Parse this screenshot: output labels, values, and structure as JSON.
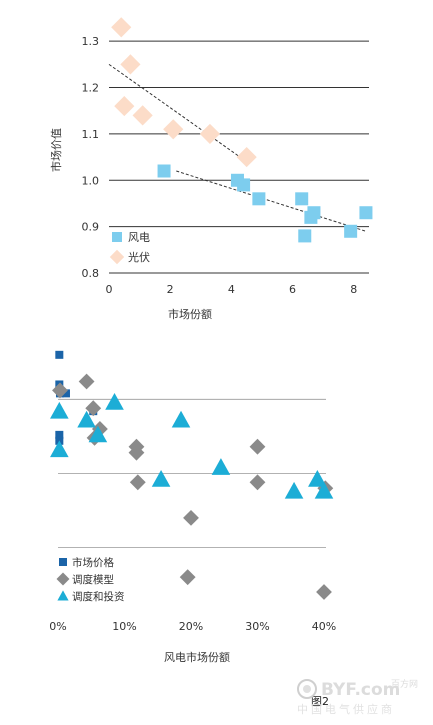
{
  "figure_label": "图2",
  "watermark": {
    "brand": "BYF.com",
    "brand_cn": "百方网",
    "tagline": "中国电气供应商"
  },
  "colors": {
    "wind": "#7dcdee",
    "solar": "#fcdcc8",
    "price": "#1b64a8",
    "dispatch": "#8a8a8a",
    "invest": "#1cadd6",
    "grid": "#333333",
    "trend": "#333333"
  },
  "chart_data": [
    {
      "type": "scatter",
      "title": "",
      "xlabel": "市场份额",
      "ylabel": "市场价值",
      "xlim": [
        0,
        8.5
      ],
      "ylim": [
        0.8,
        1.35
      ],
      "xticks": [
        0,
        2,
        4,
        6,
        8
      ],
      "yticks": [
        0.8,
        0.9,
        1.0,
        1.1,
        1.2,
        1.3
      ],
      "xtick_labels": [
        "0",
        "2",
        "4",
        "6",
        "8"
      ],
      "ytick_labels": [
        "0.8",
        "0.9",
        "1.0",
        "1.1",
        "1.2",
        "1.3"
      ],
      "grid": "horizontal",
      "legend_position": "bottom-left",
      "series": [
        {
          "name": "风电",
          "marker": "square",
          "color": "#7dcdee",
          "x": [
            1.8,
            4.2,
            4.4,
            4.9,
            6.3,
            6.4,
            6.6,
            6.7,
            7.9,
            8.4
          ],
          "y": [
            1.02,
            1.0,
            0.99,
            0.96,
            0.96,
            0.88,
            0.92,
            0.93,
            0.89,
            0.93
          ],
          "trend": [
            [
              2.2,
              1.02
            ],
            [
              8.4,
              0.89
            ]
          ]
        },
        {
          "name": "光伏",
          "marker": "diamond",
          "color": "#fcdcc8",
          "x": [
            0.4,
            0.5,
            0.7,
            1.1,
            2.1,
            3.3,
            4.5
          ],
          "y": [
            1.33,
            1.16,
            1.25,
            1.14,
            1.11,
            1.1,
            1.05
          ],
          "trend": [
            [
              0.0,
              1.25
            ],
            [
              4.5,
              1.04
            ]
          ]
        }
      ]
    },
    {
      "type": "scatter",
      "title": "",
      "xlabel": "风电市场份额",
      "ylabel": "",
      "xlim": [
        0,
        40
      ],
      "xticks": [
        0,
        10,
        20,
        30,
        40
      ],
      "xtick_labels": [
        "0%",
        "10%",
        "20%",
        "30%",
        "40%"
      ],
      "ylim": [
        0.35,
        1.2
      ],
      "ytick_labels": [],
      "grid": "horizontal",
      "gridlines_y": [
        1.0,
        0.75,
        0.5
      ],
      "legend_position": "bottom-left",
      "series": [
        {
          "name": "市场价格",
          "marker": "square",
          "color": "#1b64a8",
          "x": [
            0.2,
            0.2,
            0.3,
            0.2,
            0.2,
            1.2,
            5.3
          ],
          "y": [
            1.15,
            1.05,
            1.02,
            0.88,
            0.86,
            1.02,
            0.96
          ]
        },
        {
          "name": "调度模型",
          "marker": "diamond",
          "color": "#8a8a8a",
          "x": [
            0.3,
            4.3,
            5.3,
            6.3,
            5.5,
            11.8,
            11.8,
            12.0,
            20.0,
            30.0,
            30.0,
            19.5,
            40.2,
            40.0
          ],
          "y": [
            1.03,
            1.06,
            0.97,
            0.9,
            0.87,
            0.84,
            0.82,
            0.72,
            0.6,
            0.84,
            0.72,
            0.4,
            0.7,
            0.35
          ]
        },
        {
          "name": "调度和投资",
          "marker": "triangle",
          "color": "#1cadd6",
          "x": [
            0.2,
            0.2,
            4.3,
            6.0,
            8.5,
            18.5,
            15.5,
            24.5,
            35.5,
            39.0,
            40.0
          ],
          "y": [
            0.96,
            0.83,
            0.93,
            0.88,
            0.99,
            0.93,
            0.73,
            0.77,
            0.69,
            0.73,
            0.69
          ]
        }
      ]
    }
  ]
}
